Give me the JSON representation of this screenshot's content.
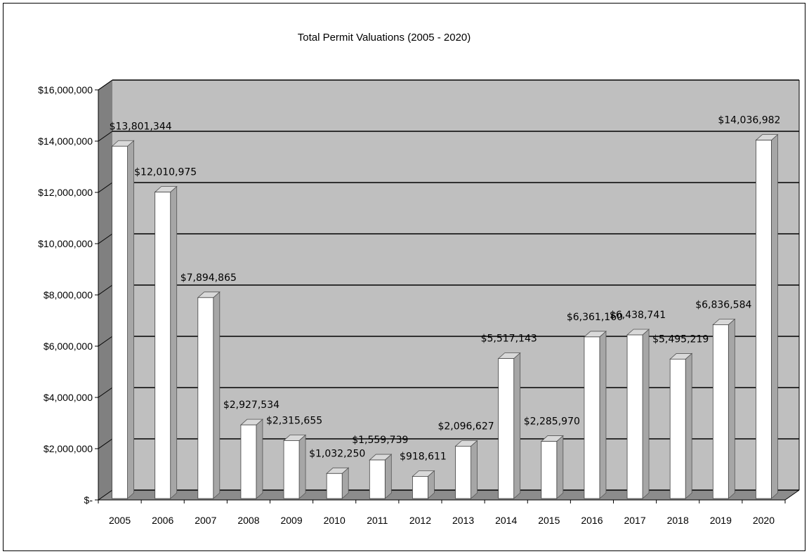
{
  "chart_data": {
    "type": "bar",
    "title": "Total Permit Valuations (2005 - 2020)",
    "xlabel": "",
    "ylabel": "",
    "ylim": [
      0,
      16000000
    ],
    "yticks": [
      {
        "value": 0,
        "label": "$-"
      },
      {
        "value": 2000000,
        "label": "$2,000,000"
      },
      {
        "value": 4000000,
        "label": "$4,000,000"
      },
      {
        "value": 6000000,
        "label": "$6,000,000"
      },
      {
        "value": 8000000,
        "label": "$8,000,000"
      },
      {
        "value": 10000000,
        "label": "$10,000,000"
      },
      {
        "value": 12000000,
        "label": "$12,000,000"
      },
      {
        "value": 14000000,
        "label": "$14,000,000"
      },
      {
        "value": 16000000,
        "label": "$16,000,000"
      }
    ],
    "categories": [
      "2005",
      "2006",
      "2007",
      "2008",
      "2009",
      "2010",
      "2011",
      "2012",
      "2013",
      "2014",
      "2015",
      "2016",
      "2017",
      "2018",
      "2019",
      "2020"
    ],
    "values": [
      13801344,
      12010975,
      7894865,
      2927534,
      2315655,
      1032250,
      1559739,
      918611,
      2096627,
      5517143,
      2285970,
      6361160,
      6438741,
      5495219,
      6836584,
      14036982
    ],
    "data_labels": [
      "$13,801,344",
      "$12,010,975",
      "$7,894,865",
      "$2,927,534",
      "$2,315,655",
      "$1,032,250",
      "$1,559,739",
      "$918,611",
      "$2,096,627",
      "$5,517,143",
      "$2,285,970",
      "$6,361,160",
      "$6,438,741",
      "$5,495,219",
      "$6,836,584",
      "$14,036,982"
    ],
    "grid": true,
    "legend": "none",
    "style": "3d-column",
    "colors": {
      "bar_face": "#ffffff",
      "bar_side": "#a6a6a6",
      "wall": "#bfbfbf",
      "side_wall": "#808080",
      "floor": "#8c8c8c"
    }
  }
}
